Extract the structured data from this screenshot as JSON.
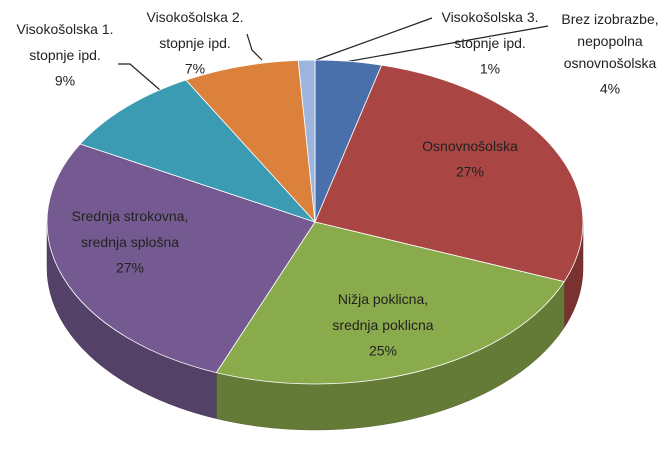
{
  "chart_data": {
    "type": "pie3d",
    "categories": [
      "Brez izobrazbe,\nnepopolna\nosnovnošolska",
      "Osnovnošolska",
      "Nižja poklicna,\nsrednja poklicna",
      "Srednja strokovna,\nsrednja splošna",
      "Visokošolska 1.\nstopnje ipd.",
      "Visokošolska 2.\nstopnje ipd.",
      "Visokošolska 3.\nstopnje ipd."
    ],
    "values": [
      4,
      27,
      25,
      27,
      9,
      7,
      1
    ],
    "value_labels": [
      "4%",
      "27%",
      "25%",
      "27%",
      "9%",
      "7%",
      "1%"
    ],
    "colors": [
      "#4a70ab",
      "#a94542",
      "#8aab4c",
      "#745a90",
      "#3b9bb2",
      "#dc813c",
      "#9db4dc"
    ]
  }
}
